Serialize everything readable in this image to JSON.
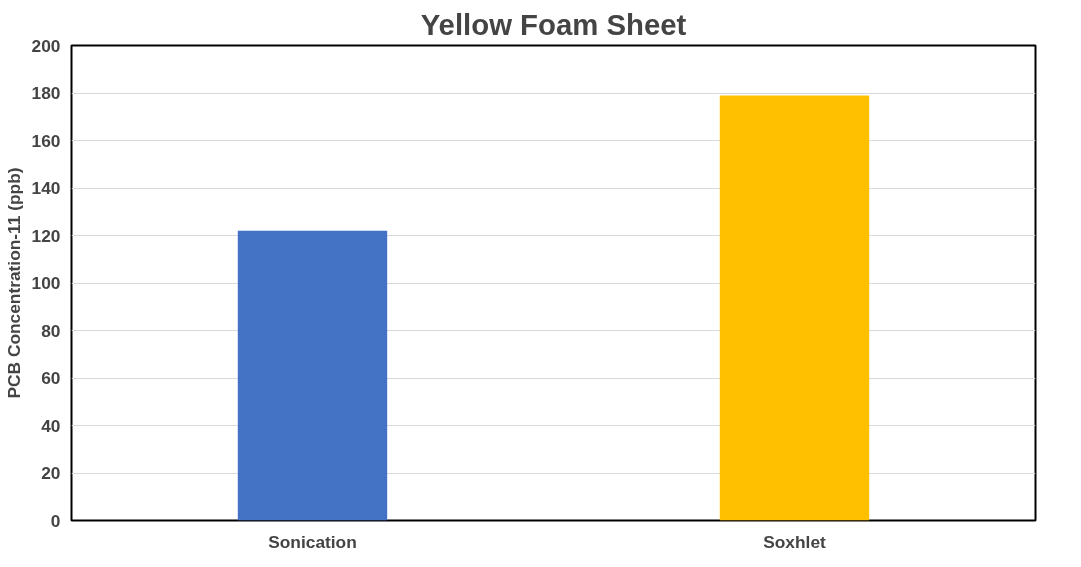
{
  "chart_data": {
    "type": "bar",
    "title": "Yellow Foam Sheet",
    "ylabel": "PCB Concentration-11 (ppb)",
    "categories": [
      "Sonication",
      "Soxhlet"
    ],
    "values": [
      122,
      179
    ],
    "colors": [
      "#4472c4",
      "#ffc000"
    ],
    "ylim": [
      0,
      200
    ],
    "yticks": [
      0,
      20,
      40,
      60,
      80,
      100,
      120,
      140,
      160,
      180,
      200
    ],
    "grid": "y"
  }
}
